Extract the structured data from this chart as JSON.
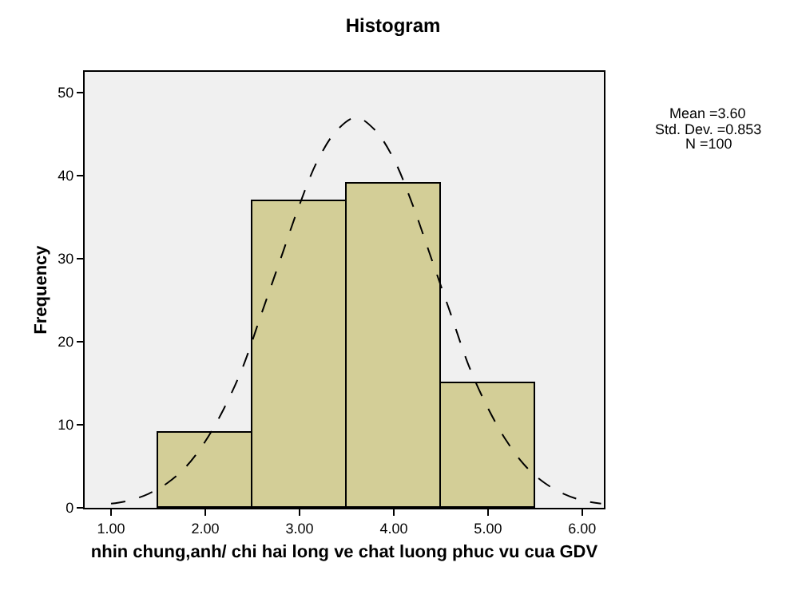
{
  "chart_data": {
    "type": "histogram",
    "title": "Histogram",
    "xlabel": "nhin chung,anh/ chi hai long ve chat luong phuc vu cua GDV",
    "ylabel": "Frequency",
    "bins": [
      1.5,
      2.5,
      3.5,
      4.5,
      5.5
    ],
    "values": [
      9,
      37,
      39,
      15
    ],
    "color": "#d3ce97",
    "series": [
      {
        "type": "line",
        "line_style": "dashed",
        "color": "#000000",
        "x": [
          1.0,
          1.2,
          1.4,
          1.6,
          1.8,
          2.0,
          2.2,
          2.4,
          2.6,
          2.8,
          3.0,
          3.2,
          3.4,
          3.6,
          3.8,
          4.0,
          4.2,
          4.4,
          4.6,
          4.8,
          5.0,
          5.2,
          5.4,
          5.6,
          5.8,
          6.0,
          6.2
        ],
        "values": [
          0.5,
          0.9,
          1.7,
          3,
          5,
          8,
          12,
          17,
          23.5,
          30,
          36.5,
          42,
          45.5,
          47,
          45.5,
          42,
          36.5,
          30,
          23.5,
          17,
          12,
          8,
          5,
          3,
          1.7,
          0.9,
          0.5
        ]
      }
    ],
    "xlim": [
      0.72,
      6.23
    ],
    "xticks": [
      {
        "value": 1,
        "label": "1.00"
      },
      {
        "value": 2,
        "label": "2.00"
      },
      {
        "value": 3,
        "label": "3.00"
      },
      {
        "value": 4,
        "label": "4.00"
      },
      {
        "value": 5,
        "label": "5.00"
      },
      {
        "value": 6,
        "label": "6.00"
      }
    ],
    "ylim": [
      0,
      52.5
    ],
    "yticks": [
      0,
      10,
      20,
      30,
      40,
      50
    ],
    "annotations": [
      "Mean =3.60",
      "Std. Dev. =0.853",
      "N =100"
    ]
  }
}
